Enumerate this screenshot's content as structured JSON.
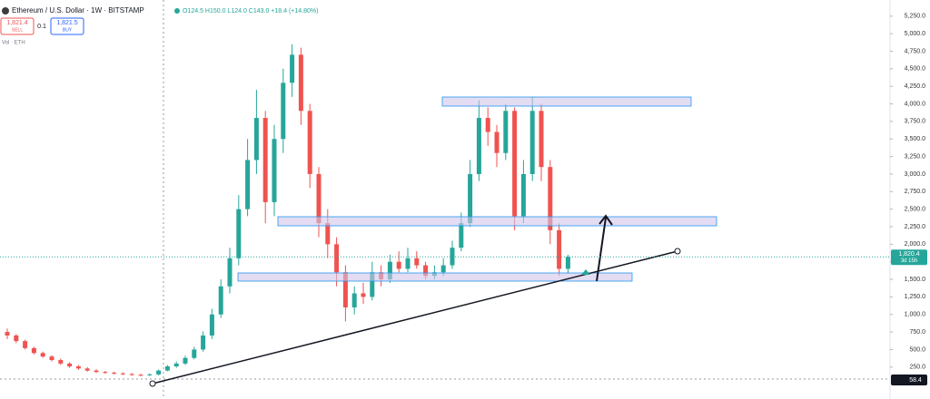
{
  "chart_data": {
    "type": "candlestick",
    "title": "Ethereum / U.S. Dollar · 1W · BITSTAMP",
    "ohlc": "O124.5 H150.0 L124.0 C143.0 +18.4 (+14.80%)",
    "sell_price": "1,821.4",
    "sell_label": "SELL",
    "spread": "0.1",
    "buy_price": "1,821.5",
    "buy_label": "BUY",
    "volume_label": "Vol · ETH",
    "last_price": {
      "value": 1820.4,
      "label": "1,820.4"
    },
    "countdown": "3d 15h",
    "indicator_value": "58.4",
    "up_color": "#26a69a",
    "down_color": "#ef5350",
    "categories": [
      null,
      null,
      null,
      null,
      null,
      null,
      null,
      null,
      null,
      null,
      null,
      null,
      null,
      null,
      null,
      null,
      null,
      null,
      null,
      null,
      null,
      null,
      null,
      null,
      null,
      null,
      null,
      null,
      null,
      null,
      null,
      null,
      null,
      null,
      null,
      null,
      null,
      null,
      null,
      null,
      null,
      null,
      null,
      null,
      null,
      null,
      null,
      null,
      null,
      null,
      null,
      null,
      null,
      null,
      null,
      null,
      null,
      null,
      null,
      null,
      null,
      null,
      null,
      null
    ],
    "open": [
      750,
      700,
      620,
      520,
      450,
      400,
      350,
      300,
      260,
      230,
      200,
      180,
      170,
      160,
      150,
      140,
      135,
      145,
      200,
      260,
      300,
      380,
      500,
      700,
      1000,
      1400,
      1800,
      2500,
      3200,
      3800,
      2600,
      3500,
      4300,
      4700,
      3900,
      3000,
      2300,
      2000,
      1600,
      1100,
      1300,
      1250,
      1600,
      1500,
      1750,
      1650,
      1800,
      1700,
      1550,
      1600,
      1700,
      1950,
      2300,
      3000,
      3800,
      3600,
      3300,
      3900,
      2400,
      3000,
      3900,
      3100,
      2200,
      1650
    ],
    "high": [
      800,
      720,
      640,
      540,
      470,
      420,
      370,
      320,
      280,
      250,
      220,
      195,
      185,
      175,
      165,
      155,
      160,
      215,
      280,
      330,
      410,
      540,
      760,
      1080,
      1500,
      1950,
      2700,
      3500,
      4200,
      3900,
      3700,
      4500,
      4850,
      4800,
      4000,
      3100,
      2500,
      2100,
      1700,
      1400,
      1450,
      1750,
      1700,
      1850,
      1900,
      1950,
      1900,
      1750,
      1700,
      1800,
      2050,
      2450,
      3200,
      4050,
      3950,
      3700,
      4000,
      3950,
      3200,
      4100,
      4000,
      3200,
      2300,
      1850
    ],
    "low": [
      650,
      590,
      500,
      430,
      380,
      330,
      280,
      240,
      210,
      185,
      165,
      155,
      145,
      135,
      125,
      120,
      125,
      135,
      190,
      240,
      280,
      360,
      470,
      650,
      950,
      1300,
      1700,
      2400,
      3000,
      2300,
      2400,
      3300,
      4100,
      3700,
      2800,
      2100,
      1800,
      1400,
      900,
      1000,
      1150,
      1200,
      1400,
      1450,
      1600,
      1600,
      1650,
      1500,
      1500,
      1550,
      1650,
      1900,
      2250,
      2900,
      3400,
      3100,
      3200,
      2200,
      2300,
      2900,
      2900,
      2000,
      1550,
      1580
    ],
    "close": [
      700,
      620,
      520,
      450,
      400,
      350,
      300,
      260,
      230,
      200,
      180,
      170,
      160,
      150,
      140,
      135,
      145,
      200,
      260,
      300,
      380,
      500,
      700,
      1000,
      1400,
      1800,
      2500,
      3200,
      3800,
      2600,
      3500,
      4300,
      4700,
      3900,
      3000,
      2300,
      2000,
      1600,
      1100,
      1300,
      1250,
      1600,
      1500,
      1750,
      1650,
      1800,
      1700,
      1550,
      1600,
      1700,
      1950,
      2300,
      3000,
      3800,
      3600,
      3300,
      3900,
      2400,
      3000,
      3900,
      3100,
      2200,
      1650,
      1820
    ],
    "ylim": [
      -50,
      5480
    ],
    "yticks": [
      {
        "value": 250,
        "label": "250.0"
      },
      {
        "value": 500,
        "label": "500.0"
      },
      {
        "value": 750,
        "label": "750.0"
      },
      {
        "value": 1000,
        "label": "1,000.0"
      },
      {
        "value": 1250,
        "label": "1,250.0"
      },
      {
        "value": 1500,
        "label": "1,500.0"
      },
      {
        "value": 1750,
        "label": "1,750.0"
      },
      {
        "value": 2000,
        "label": "2,000.0"
      },
      {
        "value": 2250,
        "label": "2,250.0"
      },
      {
        "value": 2500,
        "label": "2,500.0"
      },
      {
        "value": 2750,
        "label": "2,750.0"
      },
      {
        "value": 3000,
        "label": "3,000.0"
      },
      {
        "value": 3250,
        "label": "3,250.0"
      },
      {
        "value": 3500,
        "label": "3,500.0"
      },
      {
        "value": 3750,
        "label": "3,750.0"
      },
      {
        "value": 4000,
        "label": "4,000.0"
      },
      {
        "value": 4250,
        "label": "4,250.0"
      },
      {
        "value": 4500,
        "label": "4,500.0"
      },
      {
        "value": 4750,
        "label": "4,750.0"
      },
      {
        "value": 5000,
        "label": "5,000.0"
      },
      {
        "value": 5250,
        "label": "5,250.0"
      }
    ]
  }
}
